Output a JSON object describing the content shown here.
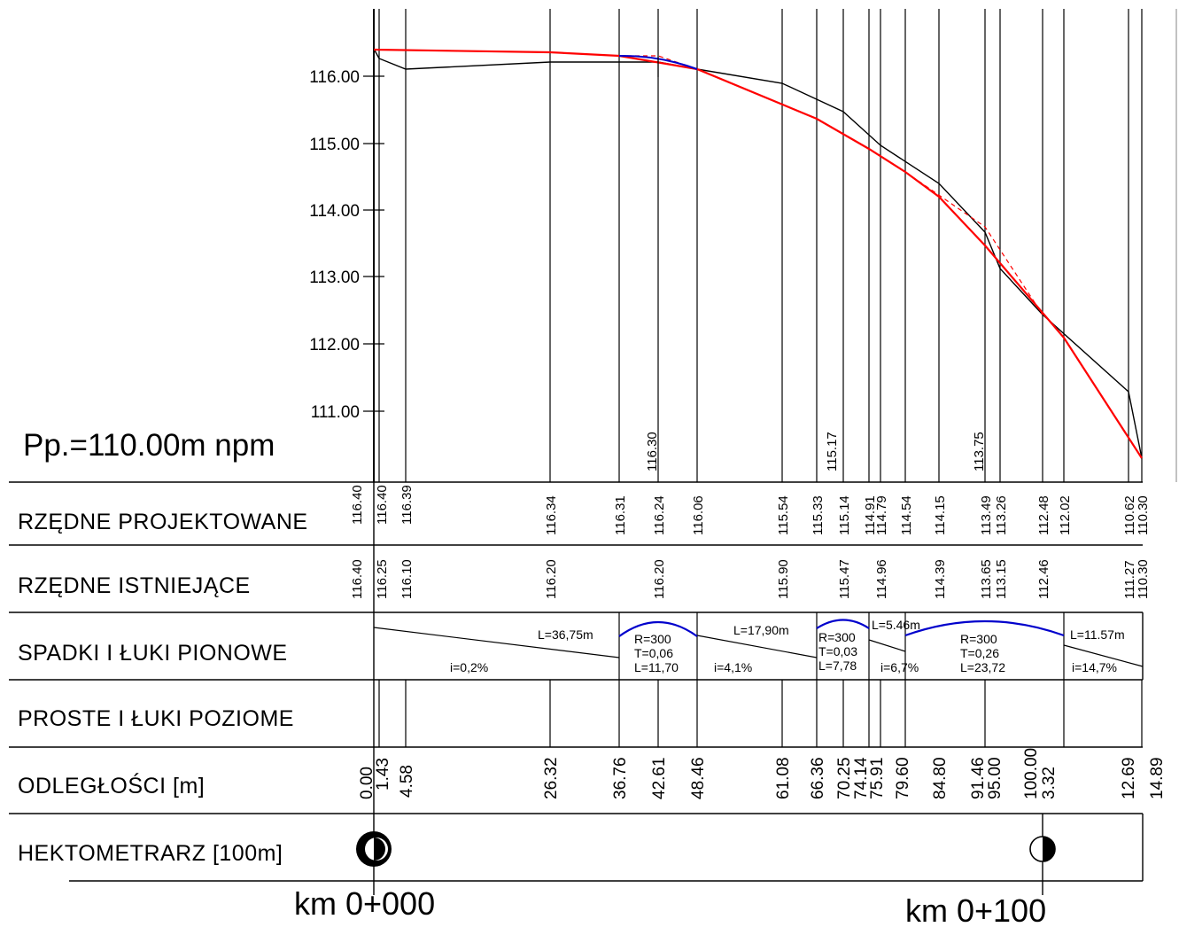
{
  "datum_label": "Pp.=110.00m  npm",
  "y_axis_labels": [
    "116.00",
    "115.00",
    "114.00",
    "113.00",
    "112.00",
    "111.00"
  ],
  "row_labels": {
    "projected": "RZĘDNE PROJEKTOWANE",
    "existing": "RZĘDNE ISTNIEJĄCE",
    "slopes": "SPADKI I ŁUKI PIONOWE",
    "horizontal": "PROSTE I ŁUKI POZIOME",
    "distances": "ODLEGŁOŚCI [m]",
    "hectometer": "HEKTOMETRARZ [100m]"
  },
  "km_labels": [
    "km  0+000",
    "km  0+100"
  ],
  "projected_elevations": [
    "116.40",
    "116.40",
    "116.39",
    "116.34",
    "116.31",
    "116.24",
    "116.06",
    "115.54",
    "115.33",
    "115.14",
    "114.91",
    "114.79",
    "114.54",
    "114.15",
    "113.49",
    "113.26",
    "112.48",
    "112.02",
    "110.62",
    "110.30"
  ],
  "existing_elevations": [
    "116.40",
    "116.25",
    "116.10",
    "116.20",
    "116.20",
    "115.90",
    "115.47",
    "114.96",
    "114.39",
    "113.65",
    "113.15",
    "112.46",
    "111.27",
    "110.30"
  ],
  "distances": [
    "0.00",
    "1.43",
    "4.58",
    "26.32",
    "36.76",
    "42.61",
    "48.46",
    "61.08",
    "66.36",
    "70.25",
    "74.14",
    "75.91",
    "79.60",
    "84.80",
    "91.46",
    "95.00",
    "100.00",
    "3.32",
    "12.69",
    "14.89"
  ],
  "vertex_elevations": [
    "116.30",
    "115.17",
    "113.75"
  ],
  "slope_segments": {
    "s1_length": "L=36,75m",
    "s1_grade": "i=0,2%",
    "c1": [
      "R=300",
      "T=0,06",
      "L=11,70"
    ],
    "s2_length": "L=17,90m",
    "s2_grade": "i=4,1%",
    "c2": [
      "R=300",
      "T=0,03",
      "L=7,78"
    ],
    "s3_length": "L=5.46m",
    "s3_grade": "i=6,7%",
    "c3": [
      "R=300",
      "T=0,26",
      "L=23,72"
    ],
    "s4_length": "L=11.57m",
    "s4_grade": "i=14,7%"
  },
  "colors": {
    "design_line": "#ff0000",
    "vertical_curve": "#0000cc",
    "lines": "#000000"
  }
}
